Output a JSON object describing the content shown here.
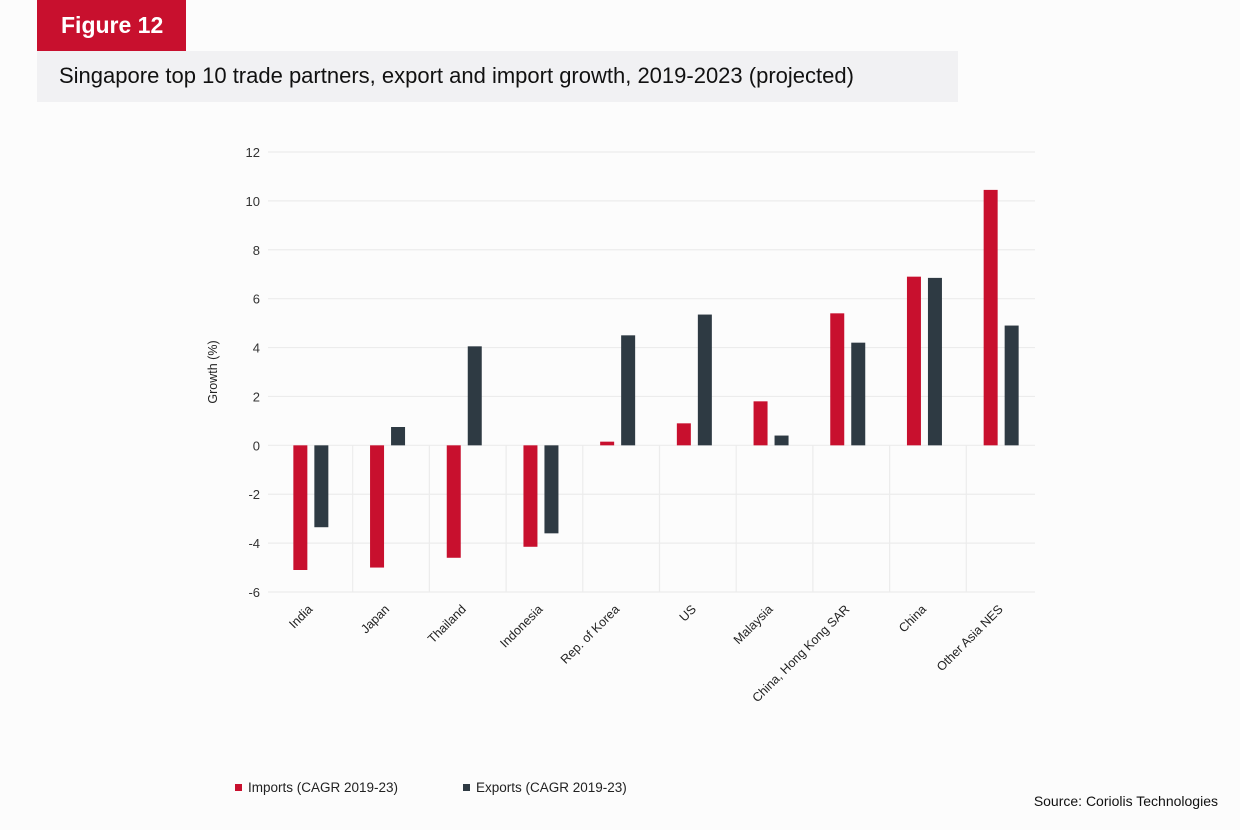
{
  "figure_label": "Figure 12",
  "title": "Singapore top 10 trade partners, export and import growth, 2019-2023 (projected)",
  "source": "Source: Coriolis Technologies",
  "colors": {
    "imports": "#c8102e",
    "exports": "#2e3a43"
  },
  "chart_data": {
    "type": "bar",
    "title": "Singapore top 10 trade partners, export and import growth, 2019-2023 (projected)",
    "xlabel": "",
    "ylabel": "Growth (%)",
    "ylim": [
      -6,
      12
    ],
    "yticks": [
      -6,
      -4,
      -2,
      0,
      2,
      4,
      6,
      8,
      10,
      12
    ],
    "grid": true,
    "legend_position": "bottom-left",
    "categories": [
      "India",
      "Japan",
      "Thailand",
      "Indonesia",
      "Rep. of Korea",
      "US",
      "Malaysia",
      "China, Hong Kong SAR",
      "China",
      "Other Asia NES"
    ],
    "series": [
      {
        "name": "Imports (CAGR 2019-23)",
        "values": [
          -5.1,
          -5.0,
          -4.6,
          -4.15,
          0.15,
          0.9,
          1.8,
          5.4,
          6.9,
          10.45
        ]
      },
      {
        "name": "Exports (CAGR 2019-23)",
        "values": [
          -3.35,
          0.75,
          4.05,
          -3.6,
          4.5,
          5.35,
          0.4,
          4.2,
          6.85,
          4.9
        ]
      }
    ]
  }
}
